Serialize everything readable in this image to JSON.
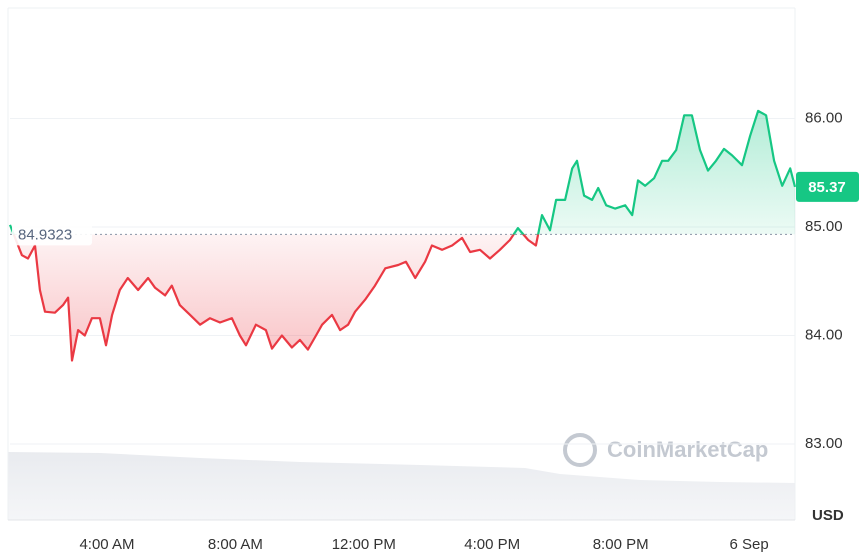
{
  "chart_data": {
    "type": "line",
    "x": [
      0.98,
      1.35,
      1.54,
      1.76,
      1.91,
      2.07,
      2.38,
      2.63,
      2.79,
      2.91,
      3.1,
      3.31,
      3.53,
      3.78,
      3.97,
      4.16,
      4.4,
      4.65,
      4.97,
      5.28,
      5.5,
      5.81,
      6.02,
      6.27,
      6.59,
      6.9,
      7.21,
      7.52,
      7.89,
      8.14,
      8.33,
      8.64,
      8.95,
      9.14,
      9.45,
      9.76,
      10.01,
      10.26,
      10.51,
      10.7,
      11.01,
      11.26,
      11.51,
      11.73,
      12.04,
      12.35,
      12.67,
      13.07,
      13.31,
      13.6,
      13.91,
      14.12,
      14.44,
      14.75,
      15.06,
      15.31,
      15.62,
      15.93,
      16.24,
      16.55,
      16.8,
      17.12,
      17.36,
      17.55,
      17.8,
      17.99,
      18.27,
      18.49,
      18.64,
      18.86,
      19.11,
      19.3,
      19.55,
      19.83,
      20.14,
      20.36,
      20.54,
      20.76,
      21.04,
      21.29,
      21.48,
      21.73,
      21.98,
      22.22,
      22.47,
      22.72,
      22.97,
      23.22,
      23.47,
      23.78,
      24.03,
      24.28,
      24.53,
      24.78,
      25.03,
      25.28,
      25.43
    ],
    "values": [
      85.02,
      84.74,
      84.71,
      84.83,
      84.42,
      84.22,
      84.21,
      84.28,
      84.35,
      83.77,
      84.05,
      84.0,
      84.16,
      84.16,
      83.91,
      84.19,
      84.42,
      84.53,
      84.42,
      84.53,
      84.44,
      84.37,
      84.46,
      84.28,
      84.19,
      84.1,
      84.16,
      84.12,
      84.16,
      84.0,
      83.91,
      84.1,
      84.05,
      83.88,
      84.0,
      83.89,
      83.96,
      83.87,
      84.0,
      84.1,
      84.19,
      84.05,
      84.1,
      84.22,
      84.33,
      84.46,
      84.62,
      84.65,
      84.68,
      84.53,
      84.68,
      84.83,
      84.79,
      84.83,
      84.9,
      84.77,
      84.79,
      84.71,
      84.79,
      84.88,
      84.99,
      84.88,
      84.83,
      85.11,
      84.97,
      85.25,
      85.25,
      85.54,
      85.61,
      85.29,
      85.25,
      85.36,
      85.2,
      85.17,
      85.2,
      85.11,
      85.43,
      85.38,
      85.45,
      85.61,
      85.61,
      85.71,
      86.03,
      86.03,
      85.71,
      85.52,
      85.61,
      85.72,
      85.66,
      85.57,
      85.84,
      86.07,
      86.03,
      85.61,
      85.38,
      85.54,
      85.37
    ],
    "color_up": "#16c784",
    "color_down": "#ea3943",
    "baseline": 84.9323,
    "current": 85.37,
    "xlim": [
      0.98,
      25.43
    ],
    "xticks": [
      {
        "value": 4,
        "label": "4:00 AM"
      },
      {
        "value": 8,
        "label": "8:00 AM"
      },
      {
        "value": 12,
        "label": "12:00 PM"
      },
      {
        "value": 16,
        "label": "4:00 PM"
      },
      {
        "value": 20,
        "label": "8:00 PM"
      },
      {
        "value": 24,
        "label": "6 Sep"
      }
    ],
    "ylim": [
      82.3,
      87.0
    ],
    "yticks": [
      {
        "value": 83,
        "label": "83.00"
      },
      {
        "value": 84,
        "label": "84.00"
      },
      {
        "value": 85,
        "label": "85.00"
      },
      {
        "value": 86,
        "label": "86.00"
      }
    ],
    "grid": true,
    "currency_label": "USD",
    "watermark": "CoinMarketCap"
  }
}
